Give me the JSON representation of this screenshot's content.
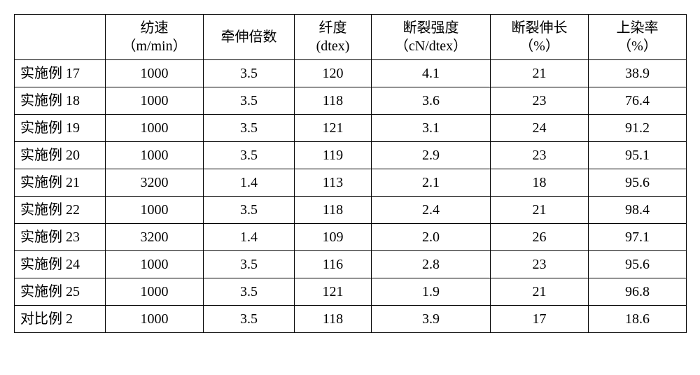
{
  "table": {
    "columns": [
      {
        "line1": "",
        "line2": ""
      },
      {
        "line1": "纺速",
        "line2": "（m/min）"
      },
      {
        "line1": "牵伸倍数",
        "line2": ""
      },
      {
        "line1": "纤度",
        "line2": "(dtex)"
      },
      {
        "line1": "断裂强度",
        "line2": "（cN/dtex）"
      },
      {
        "line1": "断裂伸长",
        "line2": "（%）"
      },
      {
        "line1": "上染率",
        "line2": "（%）"
      }
    ],
    "rows": [
      {
        "label": "实施例 17",
        "cells": [
          "1000",
          "3.5",
          "120",
          "4.1",
          "21",
          "38.9"
        ]
      },
      {
        "label": "实施例 18",
        "cells": [
          "1000",
          "3.5",
          "118",
          "3.6",
          "23",
          "76.4"
        ]
      },
      {
        "label": "实施例 19",
        "cells": [
          "1000",
          "3.5",
          "121",
          "3.1",
          "24",
          "91.2"
        ]
      },
      {
        "label": "实施例 20",
        "cells": [
          "1000",
          "3.5",
          "119",
          "2.9",
          "23",
          "95.1"
        ]
      },
      {
        "label": "实施例 21",
        "cells": [
          "3200",
          "1.4",
          "113",
          "2.1",
          "18",
          "95.6"
        ]
      },
      {
        "label": "实施例 22",
        "cells": [
          "1000",
          "3.5",
          "118",
          "2.4",
          "21",
          "98.4"
        ]
      },
      {
        "label": "实施例 23",
        "cells": [
          "3200",
          "1.4",
          "109",
          "2.0",
          "26",
          "97.1"
        ]
      },
      {
        "label": "实施例 24",
        "cells": [
          "1000",
          "3.5",
          "116",
          "2.8",
          "23",
          "95.6"
        ]
      },
      {
        "label": "实施例 25",
        "cells": [
          "1000",
          "3.5",
          "121",
          "1.9",
          "21",
          "96.8"
        ]
      },
      {
        "label": "对比例 2",
        "cells": [
          "1000",
          "3.5",
          "118",
          "3.9",
          "17",
          "18.6"
        ]
      }
    ],
    "text_color": "#000000",
    "border_color": "#000000",
    "background_color": "#ffffff",
    "font_size_pt": 15
  }
}
